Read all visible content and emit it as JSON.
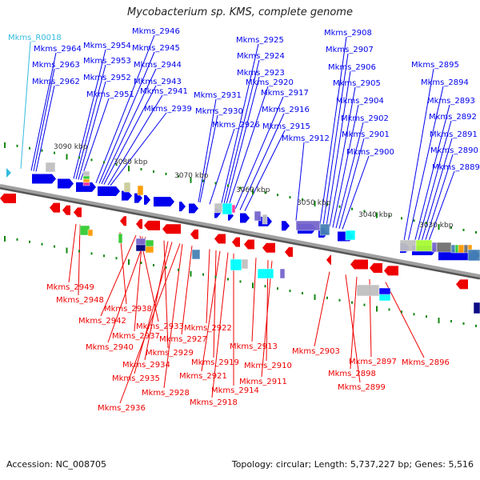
{
  "title": "Mycobacterium sp. KMS, complete genome",
  "footer": {
    "accession": "Accession: NC_008705",
    "summary": "Topology: circular; Length: 5,737,227 bp; Genes: 5,516"
  },
  "colors": {
    "forward": "#0000ee",
    "reverse": "#ee0000",
    "rna": "#33bbdd",
    "backbone": "#808080",
    "tick": "#118811"
  },
  "scale_labels": [
    "3090 kbp",
    "3080 kbp",
    "3070 kbp",
    "3060 kbp",
    "3050 kbp",
    "3040 kbp",
    "3030 kbp"
  ],
  "forward_labels": [
    {
      "text": "Mkms_R0018",
      "rna": true
    },
    {
      "text": "Mkms_2964"
    },
    {
      "text": "Mkms_2963"
    },
    {
      "text": "Mkms_2962"
    },
    {
      "text": "Mkms_2954"
    },
    {
      "text": "Mkms_2953"
    },
    {
      "text": "Mkms_2952"
    },
    {
      "text": "Mkms_2951"
    },
    {
      "text": "Mkms_2946"
    },
    {
      "text": "Mkms_2945"
    },
    {
      "text": "Mkms_2944"
    },
    {
      "text": "Mkms_2943"
    },
    {
      "text": "Mkms_2941"
    },
    {
      "text": "Mkms_2939"
    },
    {
      "text": "Mkms_2931"
    },
    {
      "text": "Mkms_2930"
    },
    {
      "text": "Mkms_2926"
    },
    {
      "text": "Mkms_2925"
    },
    {
      "text": "Mkms_2924"
    },
    {
      "text": "Mkms_2923"
    },
    {
      "text": "Mkms_2920"
    },
    {
      "text": "Mkms_2917"
    },
    {
      "text": "Mkms_2916"
    },
    {
      "text": "Mkms_2915"
    },
    {
      "text": "Mkms_2912"
    },
    {
      "text": "Mkms_2908"
    },
    {
      "text": "Mkms_2907"
    },
    {
      "text": "Mkms_2906"
    },
    {
      "text": "Mkms_2905"
    },
    {
      "text": "Mkms_2904"
    },
    {
      "text": "Mkms_2902"
    },
    {
      "text": "Mkms_2901"
    },
    {
      "text": "Mkms_2900"
    },
    {
      "text": "Mkms_2895"
    },
    {
      "text": "Mkms_2894"
    },
    {
      "text": "Mkms_2893"
    },
    {
      "text": "Mkms_2892"
    },
    {
      "text": "Mkms_2891"
    },
    {
      "text": "Mkms_2890"
    },
    {
      "text": "Mkms_2889"
    }
  ],
  "reverse_labels": [
    {
      "text": "Mkms_2949"
    },
    {
      "text": "Mkms_2948"
    },
    {
      "text": "Mkms_2938"
    },
    {
      "text": "Mkms_2942"
    },
    {
      "text": "Mkms_2933"
    },
    {
      "text": "Mkms_2937"
    },
    {
      "text": "Mkms_2940"
    },
    {
      "text": "Mkms_2929"
    },
    {
      "text": "Mkms_2934"
    },
    {
      "text": "Mkms_2935"
    },
    {
      "text": "Mkms_2936"
    },
    {
      "text": "Mkms_2928"
    },
    {
      "text": "Mkms_2927"
    },
    {
      "text": "Mkms_2922"
    },
    {
      "text": "Mkms_2919"
    },
    {
      "text": "Mkms_2921"
    },
    {
      "text": "Mkms_2918"
    },
    {
      "text": "Mkms_2914"
    },
    {
      "text": "Mkms_2913"
    },
    {
      "text": "Mkms_2910"
    },
    {
      "text": "Mkms_2911"
    },
    {
      "text": "Mkms_2903"
    },
    {
      "text": "Mkms_2899"
    },
    {
      "text": "Mkms_2898"
    },
    {
      "text": "Mkms_2897"
    },
    {
      "text": "Mkms_2896"
    }
  ],
  "cog_colors": [
    "#c0c0c0",
    "#cccc99",
    "#ff9900",
    "#33cc33",
    "#ff3399",
    "#00ffff",
    "#7766cc",
    "#4682b4",
    "#000080",
    "#aaff33",
    "#707070",
    "#0000ff"
  ]
}
